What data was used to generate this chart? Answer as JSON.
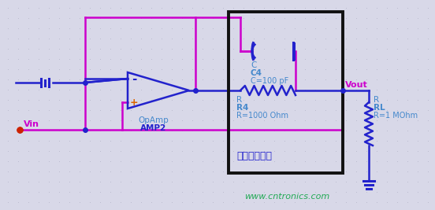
{
  "bg_color": "#d8d8e8",
  "dot_color": "#b8b8cc",
  "wire_blue": "#2222cc",
  "wire_magenta": "#cc00cc",
  "wire_red": "#cc2200",
  "text_blue": "#4488cc",
  "text_magenta": "#cc00cc",
  "text_green": "#22aa55",
  "box_color": "#111111",
  "watermark": "www.cntronics.com",
  "label_vin": "Vin",
  "label_vout": "Vout",
  "label_opamp1": "OpAmp",
  "label_opamp2": "AMP2",
  "label_cap1": "C",
  "label_cap2": "C4",
  "label_cap3": "C=100 pF",
  "label_res1": "R",
  "label_res2": "R4",
  "label_res3": "R=1000 Ohm",
  "label_rl1": "R",
  "label_rl2": "RL",
  "label_rl3": "R=1 MOhm",
  "label_box": "脉冲增强电路",
  "figsize": [
    5.52,
    2.67
  ],
  "dpi": 100
}
